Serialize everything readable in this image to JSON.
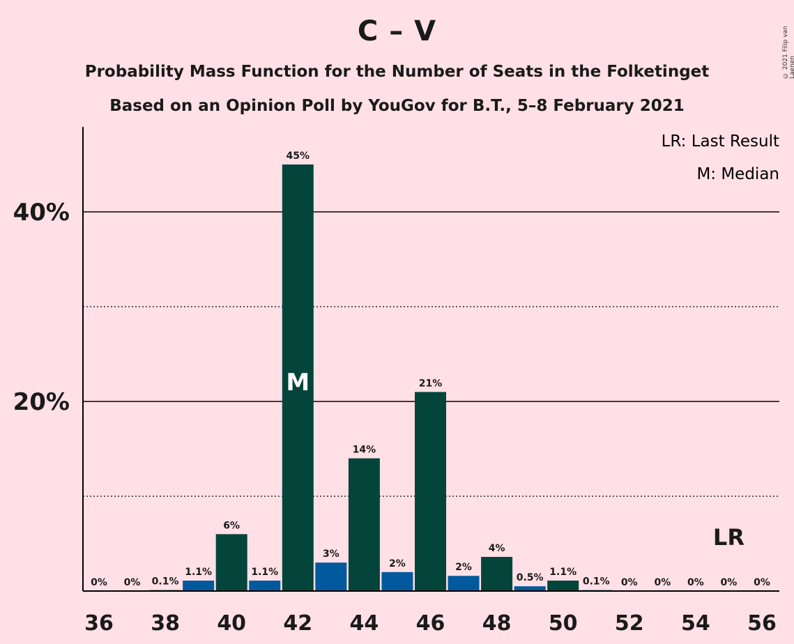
{
  "header": {
    "title": "C – V",
    "subtitle_line1": "Probability Mass Function for the Number of Seats in the Folketinget",
    "subtitle_line2": "Based on an Opinion Poll by YouGov for B.T., 5–8 February 2021",
    "copyright": "© 2021 Filip van Laenen"
  },
  "legend": {
    "last_result": "LR: Last Result",
    "median": "M: Median"
  },
  "colors": {
    "background": "#FFE0E6",
    "bar_dark": "#03453A",
    "bar_blue": "#03599D",
    "text": "#1a1a1a"
  },
  "chart_data": {
    "type": "bar",
    "title": "C – V",
    "xlabel": "",
    "ylabel": "",
    "ylim": [
      0,
      48
    ],
    "y_ticks": [
      {
        "value": 20,
        "label": "20%"
      },
      {
        "value": 40,
        "label": "40%"
      }
    ],
    "minor_grid": [
      10,
      30
    ],
    "x_ticks": [
      36,
      38,
      40,
      42,
      44,
      46,
      48,
      50,
      52,
      54,
      56
    ],
    "categories": [
      36,
      37,
      38,
      39,
      40,
      41,
      42,
      43,
      44,
      45,
      46,
      47,
      48,
      49,
      50,
      51,
      52,
      53,
      54,
      55,
      56
    ],
    "values": [
      0,
      0,
      0.1,
      1.1,
      6,
      1.1,
      45,
      3,
      14,
      2,
      21,
      1.6,
      3.6,
      0.5,
      1.1,
      0.1,
      0,
      0,
      0,
      0,
      0
    ],
    "labels": [
      "0%",
      "0%",
      "0.1%",
      "1.1%",
      "6%",
      "1.1%",
      "45%",
      "3%",
      "14%",
      "2%",
      "21%",
      "2%",
      "4%",
      "0.5%",
      "1.1%",
      "0.1%",
      "0%",
      "0%",
      "0%",
      "0%",
      "0%"
    ],
    "median": 42,
    "median_label": "M",
    "last_result": 55,
    "last_result_label": "LR"
  }
}
